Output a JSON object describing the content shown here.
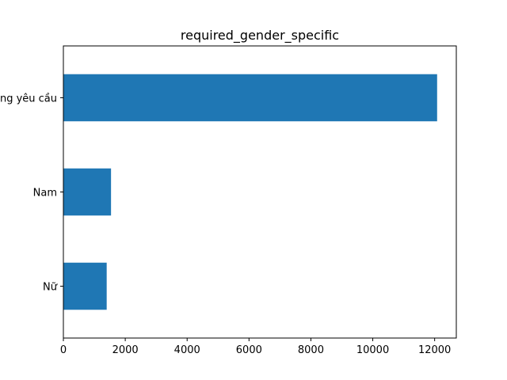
{
  "chart_data": {
    "type": "bar",
    "orientation": "horizontal",
    "title": "required_gender_specific",
    "xlabel": "",
    "ylabel": "",
    "categories": [
      "Không yêu cầu",
      "Nam",
      "Nữ"
    ],
    "values": [
      12080,
      1540,
      1400
    ],
    "xlim": [
      0,
      12700
    ],
    "xticks": [
      0,
      2000,
      4000,
      6000,
      8000,
      10000,
      12000
    ],
    "grid": false,
    "legend": "none",
    "bar_color": "#1f77b4"
  }
}
